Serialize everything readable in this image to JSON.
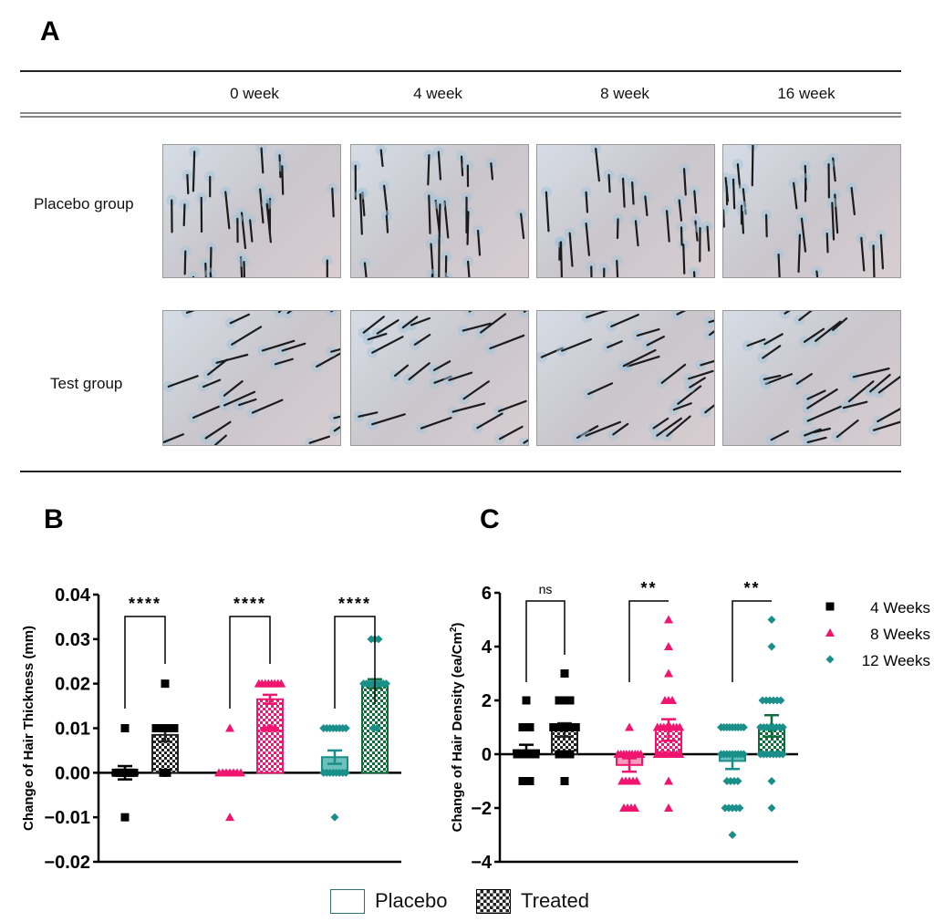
{
  "panel_a": {
    "letter": "A",
    "columns": [
      "0 week",
      "4 week",
      "8 week",
      "16 week"
    ],
    "rows": [
      "Placebo group",
      "Test group"
    ]
  },
  "bottom_legend": {
    "placebo": "Placebo",
    "treated": "Treated"
  },
  "colors": {
    "4w": "#000000",
    "8w": "#f0156e",
    "12w": "#1a8f8a",
    "12w_treated": "#0e6e3a"
  },
  "chart_data": [
    {
      "panel": "B",
      "type": "bar",
      "ylabel": "Change of Hair Thickness (mm)",
      "ylim": [
        -0.02,
        0.04
      ],
      "yticks": [
        "0.04",
        "0.03",
        "0.02",
        "0.01",
        "0.00",
        "-0.01",
        "-0.02"
      ],
      "ytick_values": [
        0.04,
        0.03,
        0.02,
        0.01,
        0,
        -0.01,
        -0.02
      ],
      "groups": [
        {
          "series": "4w",
          "significance": "****",
          "placebo": {
            "mean": 0.0,
            "sem": 0.0015,
            "points": [
              [
                0.01,
                1
              ],
              [
                0.0,
                6
              ],
              [
                -0.01,
                1
              ]
            ]
          },
          "treated": {
            "mean": 0.0085,
            "sem": 0.0015,
            "points": [
              [
                0.02,
                1
              ],
              [
                0.01,
                6
              ],
              [
                0.0,
                2
              ]
            ]
          }
        },
        {
          "series": "8w",
          "significance": "****",
          "placebo": {
            "mean": 0.0,
            "sem": 0.0003,
            "points": [
              [
                0.01,
                1
              ],
              [
                0.0,
                7
              ],
              [
                -0.01,
                1
              ]
            ]
          },
          "treated": {
            "mean": 0.0165,
            "sem": 0.001,
            "points": [
              [
                0.02,
                8
              ],
              [
                0.01,
                4
              ]
            ]
          }
        },
        {
          "series": "12w",
          "significance": "****",
          "placebo": {
            "mean": 0.0035,
            "sem": 0.0015,
            "points": [
              [
                0.01,
                8
              ],
              [
                0.0,
                8
              ],
              [
                -0.01,
                1
              ]
            ]
          },
          "treated": {
            "mean": 0.02,
            "sem": 0.001,
            "points": [
              [
                0.03,
                3
              ],
              [
                0.02,
                9
              ],
              [
                0.01,
                2
              ]
            ]
          }
        }
      ]
    },
    {
      "panel": "C",
      "type": "bar",
      "ylabel": "Change of  Hair Density (ea/Cm",
      "ylabel_sup": "2",
      "ylabel_end": ")",
      "ylim": [
        -4,
        6
      ],
      "yticks": [
        "6",
        "4",
        "2",
        "0",
        "-2",
        "-4"
      ],
      "ytick_values": [
        6,
        4,
        2,
        0,
        -2,
        -4
      ],
      "legend": [
        "4 Weeks",
        "8 Weeks",
        "12 Weeks"
      ],
      "legend_position": "top-right",
      "groups": [
        {
          "series": "4w",
          "significance": "ns",
          "placebo": {
            "mean": 0.15,
            "sem": 0.2,
            "points": [
              [
                2,
                1
              ],
              [
                1,
                3
              ],
              [
                0,
                6
              ],
              [
                -1,
                3
              ]
            ]
          },
          "treated": {
            "mean": 0.9,
            "sem": 0.25,
            "points": [
              [
                3,
                1
              ],
              [
                2,
                4
              ],
              [
                1,
                8
              ],
              [
                0,
                4
              ],
              [
                -1,
                1
              ]
            ]
          }
        },
        {
          "series": "8w",
          "significance": "**",
          "placebo": {
            "mean": -0.4,
            "sem": 0.25,
            "points": [
              [
                1,
                1
              ],
              [
                0,
                9
              ],
              [
                -1,
                5
              ],
              [
                -2,
                4
              ]
            ]
          },
          "treated": {
            "mean": 0.9,
            "sem": 0.4,
            "points": [
              [
                5,
                1
              ],
              [
                4,
                1
              ],
              [
                3,
                1
              ],
              [
                2,
                3
              ],
              [
                1,
                8
              ],
              [
                0,
                8
              ],
              [
                -1,
                1
              ],
              [
                -2,
                1
              ]
            ]
          }
        },
        {
          "series": "12w",
          "significance": "**",
          "placebo": {
            "mean": -0.25,
            "sem": 0.3,
            "points": [
              [
                1,
                9
              ],
              [
                0,
                9
              ],
              [
                -1,
                4
              ],
              [
                -2,
                5
              ],
              [
                -3,
                1
              ]
            ]
          },
          "treated": {
            "mean": 1.05,
            "sem": 0.4,
            "points": [
              [
                5,
                1
              ],
              [
                4,
                1
              ],
              [
                2,
                6
              ],
              [
                1,
                8
              ],
              [
                0,
                8
              ],
              [
                -1,
                1
              ],
              [
                -2,
                1
              ]
            ]
          }
        }
      ]
    }
  ]
}
